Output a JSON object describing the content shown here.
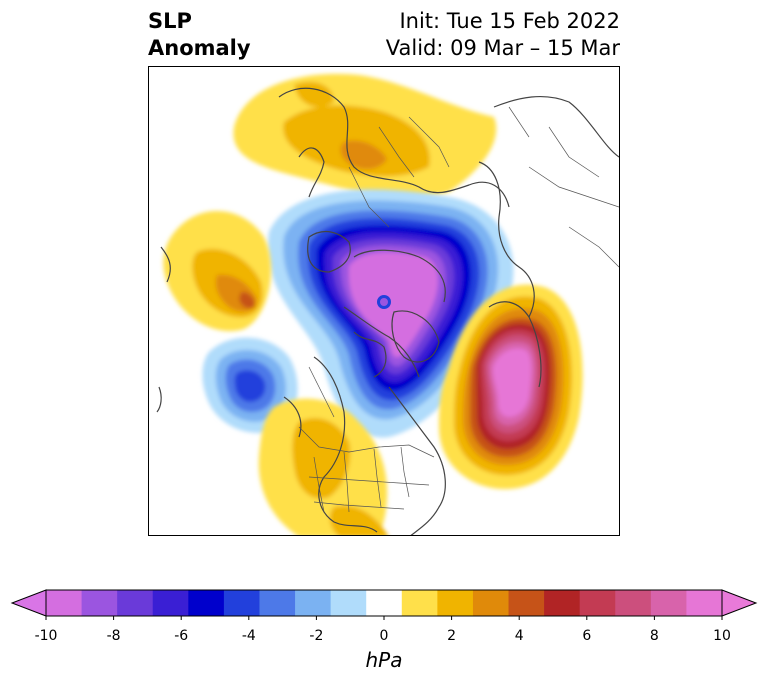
{
  "title": {
    "left_line1": "SLP",
    "left_line2": "Anomaly",
    "right_line1": "Init: Tue 15 Feb 2022",
    "right_line2": "Valid: 09 Mar – 15 Mar"
  },
  "colorbar": {
    "unit": "hPa",
    "extend": "both",
    "min_arrow_color": "#d975e6",
    "max_arrow_color": "#e97ad9",
    "levels": [
      -10,
      -9,
      -8,
      -7,
      -6,
      -5,
      -4,
      -3,
      -2,
      -1,
      1,
      2,
      3,
      4,
      5,
      6,
      7,
      8,
      9,
      10
    ],
    "colors": [
      "#d46ee0",
      "#9b55e0",
      "#6a3ad9",
      "#3a1fd4",
      "#0000cc",
      "#2240dc",
      "#4d79e8",
      "#7bb2f2",
      "#b0dcfb",
      "#ffffff",
      "#ffe04a",
      "#f0b400",
      "#e08a0a",
      "#c65318",
      "#b12425",
      "#c33b53",
      "#cc4f7d",
      "#d863ab",
      "#e676d6"
    ],
    "tick_labels": [
      "-10",
      "-8",
      "-6",
      "-4",
      "-2",
      "0",
      "2",
      "4",
      "6",
      "8",
      "10"
    ]
  },
  "map": {
    "projection": "north-polar-stereographic",
    "features": [
      "coastlines",
      "country-borders",
      "us-state-borders"
    ],
    "anomaly_centers": [
      {
        "region": "Arctic / Canadian Archipelago",
        "sign": "negative",
        "peak_hPa": -10
      },
      {
        "region": "North Pacific (west of Canada)",
        "sign": "negative",
        "peak_hPa": -6
      },
      {
        "region": "Bering Sea",
        "sign": "positive",
        "peak_hPa": 5
      },
      {
        "region": "North Atlantic",
        "sign": "positive",
        "peak_hPa": 10
      },
      {
        "region": "Northern Europe / Scandinavia",
        "sign": "positive",
        "peak_hPa": 4
      },
      {
        "region": "Southern United States",
        "sign": "positive",
        "peak_hPa": 3
      }
    ]
  }
}
